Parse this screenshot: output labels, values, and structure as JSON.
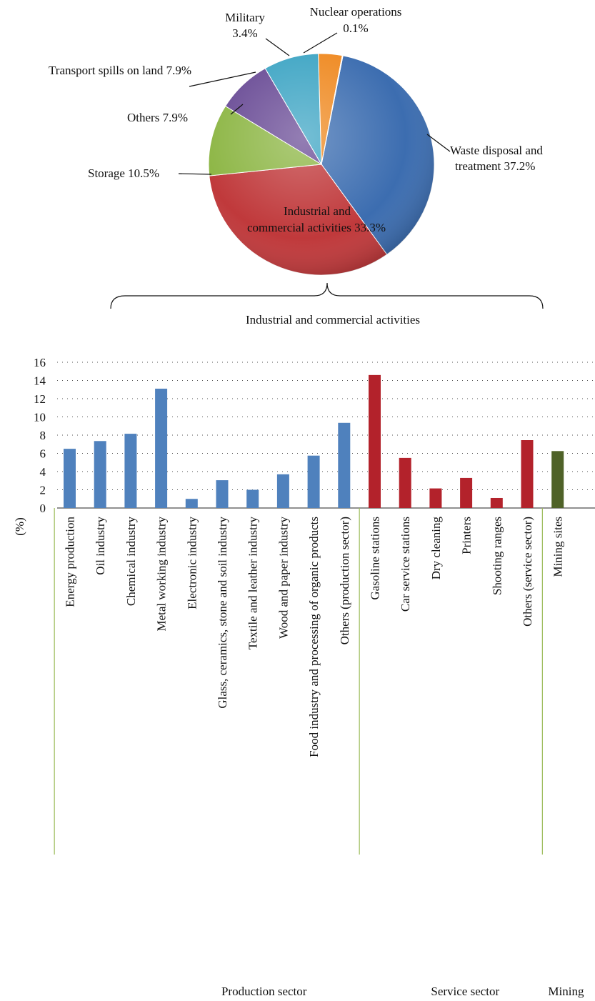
{
  "chart_data": [
    {
      "type": "pie",
      "slices": [
        {
          "label_lines": [
            "Waste disposal and",
            "treatment 37.2%"
          ],
          "value": 37.2,
          "color": "#3c6db0"
        },
        {
          "label_lines": [
            "Industrial and",
            "commercial activities 33.3%"
          ],
          "value": 33.3,
          "color": "#c0393b"
        },
        {
          "label_lines": [
            "Storage 10.5%"
          ],
          "value": 10.5,
          "color": "#8db645"
        },
        {
          "label_lines": [
            "Others 7.9%"
          ],
          "value": 7.9,
          "color": "#6a4c96"
        },
        {
          "label_lines": [
            "Transport spills on land 7.9%"
          ],
          "value": 7.9,
          "color": "#3ea5c4"
        },
        {
          "label_lines": [
            "Military",
            "3.4%"
          ],
          "value": 3.4,
          "color": "#ef8a22"
        },
        {
          "label_lines": [
            "Nuclear operations",
            "0.1%"
          ],
          "value": 0.1,
          "color": "#5a7fb8"
        }
      ],
      "brace_label": "Industrial and commercial activities"
    },
    {
      "type": "bar",
      "ylabel": "(%)",
      "ylim": [
        0,
        16
      ],
      "yticks": [
        0,
        2,
        4,
        6,
        8,
        10,
        12,
        14,
        16
      ],
      "grid": true,
      "categories": [
        "Energy production",
        "Oil industry",
        "Chemical industry",
        "Metal working industry",
        "Electronic industry",
        "Glass, ceramics, stone and soil industry",
        "Textile and leather industry",
        "Wood and paper industry",
        "Food industry and processing of organic products",
        "Others (production sector)",
        "Gasoline stations",
        "Car service stations",
        "Dry cleaning",
        "Printers",
        "Shooting ranges",
        "Others (service sector)",
        "Mining sites"
      ],
      "values": [
        6.5,
        7.35,
        8.15,
        13.1,
        1.0,
        3.05,
        2.0,
        3.7,
        5.75,
        9.35,
        14.6,
        5.5,
        2.15,
        3.3,
        1.1,
        7.45,
        6.25
      ],
      "groups": [
        {
          "name": "Production sector",
          "start": 0,
          "end": 9,
          "color": "#4f81bd"
        },
        {
          "name": "Service sector",
          "start": 10,
          "end": 15,
          "color": "#b3222b"
        },
        {
          "name": "Mining",
          "start": 16,
          "end": 16,
          "color": "#4f6228"
        }
      ]
    }
  ]
}
